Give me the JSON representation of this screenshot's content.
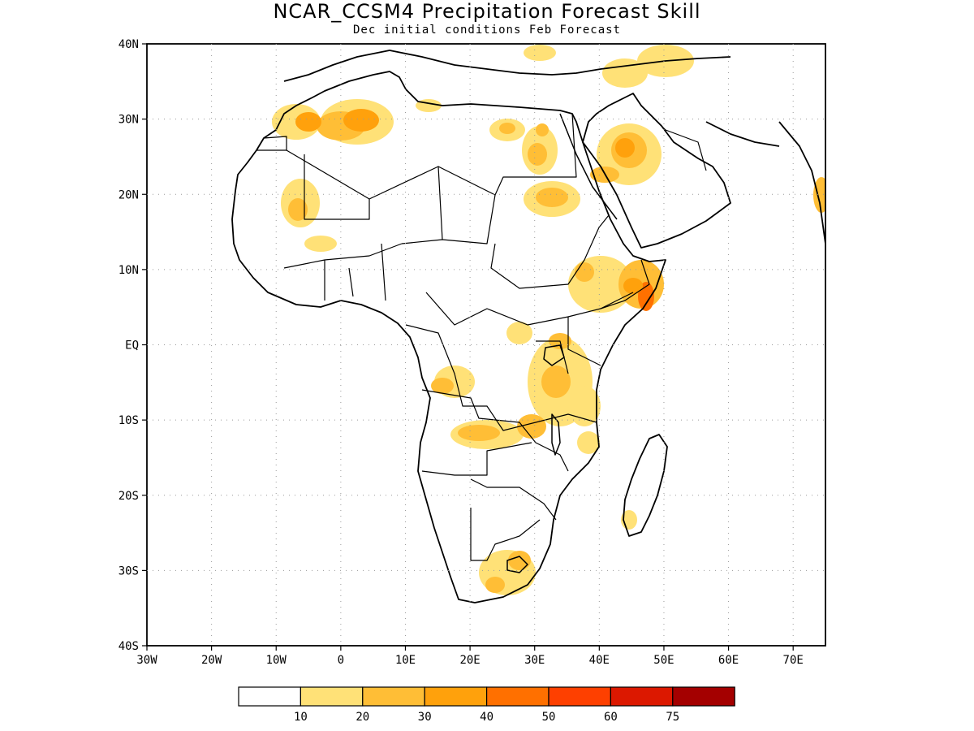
{
  "title": "NCAR_CCSM4 Precipitation Forecast Skill",
  "subtitle": "Dec initial conditions  Feb Forecast",
  "map": {
    "lon_range": [
      -30,
      75
    ],
    "lat_range": [
      -40,
      40
    ],
    "lon_ticks": [
      {
        "lon": -30,
        "label": "30W"
      },
      {
        "lon": -20,
        "label": "20W"
      },
      {
        "lon": -10,
        "label": "10W"
      },
      {
        "lon": 0,
        "label": "0"
      },
      {
        "lon": 10,
        "label": "10E"
      },
      {
        "lon": 20,
        "label": "20E"
      },
      {
        "lon": 30,
        "label": "30E"
      },
      {
        "lon": 40,
        "label": "40E"
      },
      {
        "lon": 50,
        "label": "50E"
      },
      {
        "lon": 60,
        "label": "60E"
      },
      {
        "lon": 70,
        "label": "70E"
      }
    ],
    "lat_ticks": [
      {
        "lat": 40,
        "label": "40N"
      },
      {
        "lat": 30,
        "label": "30N"
      },
      {
        "lat": 20,
        "label": "20N"
      },
      {
        "lat": 10,
        "label": "10N"
      },
      {
        "lat": 0,
        "label": "EQ"
      },
      {
        "lat": -10,
        "label": "10S"
      },
      {
        "lat": -20,
        "label": "20S"
      },
      {
        "lat": -30,
        "label": "30S"
      },
      {
        "lat": -40,
        "label": "40S"
      }
    ],
    "grid": "dotted"
  },
  "colorbar": {
    "colors": [
      "#ffffff",
      "#ffe177",
      "#ffbe36",
      "#ffa10c",
      "#ff7000",
      "#fe4000",
      "#dc1800",
      "#a40000"
    ],
    "labels": [
      "10",
      "20",
      "30",
      "40",
      "50",
      "60",
      "75"
    ]
  }
}
